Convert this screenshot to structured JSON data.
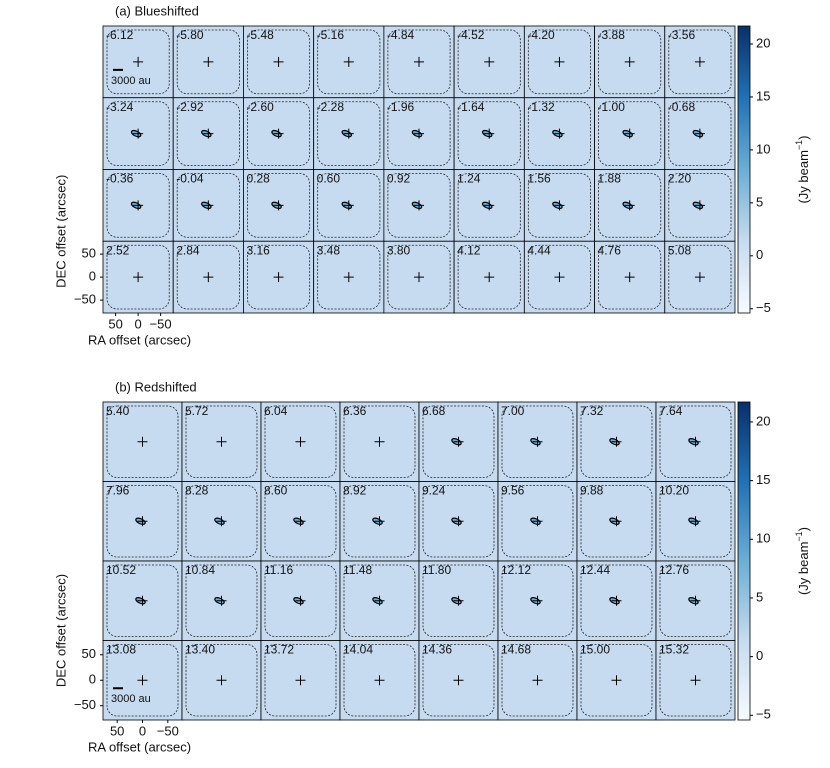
{
  "chart_data": {
    "type": "channel-map",
    "x_label": "RA offset (arcsec)",
    "y_label": "DEC offset (arcsec)",
    "xlim": [
      78,
      -78
    ],
    "ylim": [
      -78,
      78
    ],
    "xticks": [
      50,
      0,
      {
        "value": -50,
        "label": "−50"
      }
    ],
    "yticks": [
      50,
      0,
      {
        "value": -50,
        "label": "−50"
      }
    ],
    "colorbar": {
      "label": "(Jy beam",
      "label_sup": "−1",
      "label_end": ")",
      "clim": [
        -5.4,
        21.7
      ],
      "ticks": [
        {
          "value": -5,
          "label": "−5"
        },
        0,
        5,
        10,
        15,
        20
      ],
      "colors": [
        "#f7fbff",
        "#c6dbef",
        "#6baed6",
        "#2171b5",
        "#08306b"
      ]
    },
    "cell_color": "#c6dbef",
    "panels": [
      {
        "title": "(a) Blueshifted",
        "columns": 9,
        "scale_bar": "3000 au",
        "scale_bar_cell": 0,
        "channels": [
          "-6.12",
          "-5.80",
          "-5.48",
          "-5.16",
          "-4.84",
          "-4.52",
          "-4.20",
          "-3.88",
          "-3.56",
          "-3.24",
          "-2.92",
          "-2.60",
          "-2.28",
          "-1.96",
          "-1.64",
          "-1.32",
          "-1.00",
          "-0.68",
          "-0.36",
          "-0.04",
          "0.28",
          "0.60",
          "0.92",
          "1.24",
          "1.56",
          "1.88",
          "2.20",
          "2.52",
          "2.84",
          "3.16",
          "3.48",
          "3.80",
          "4.12",
          "4.44",
          "4.76",
          "5.08"
        ]
      },
      {
        "title": "(b) Redshifted",
        "columns": 8,
        "scale_bar": "3000 au",
        "scale_bar_cell": 24,
        "channels": [
          "5.40",
          "5.72",
          "6.04",
          "6.36",
          "6.68",
          "7.00",
          "7.32",
          "7.64",
          "7.96",
          "8.28",
          "8.60",
          "8.92",
          "9.24",
          "9.56",
          "9.88",
          "10.20",
          "10.52",
          "10.84",
          "11.16",
          "11.48",
          "11.80",
          "12.12",
          "12.44",
          "12.76",
          "13.08",
          "13.40",
          "13.72",
          "14.04",
          "14.36",
          "14.68",
          "15.00",
          "15.32"
        ]
      }
    ]
  }
}
